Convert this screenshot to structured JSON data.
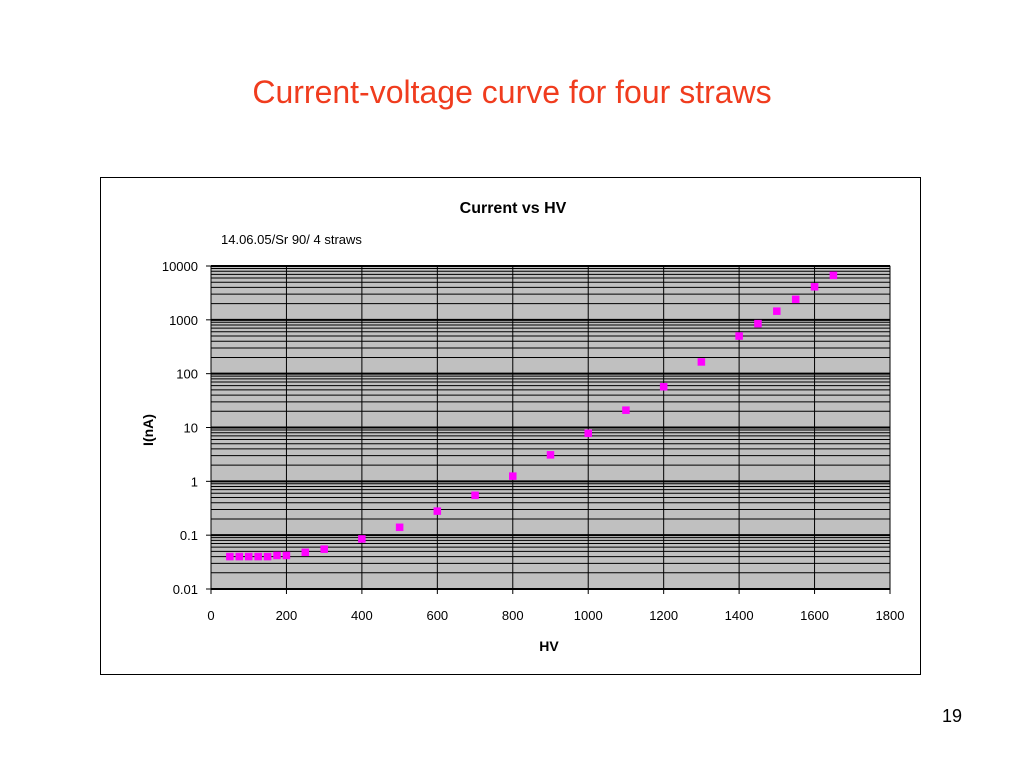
{
  "slide": {
    "title": "Current-voltage curve for four straws",
    "page_number": "19"
  },
  "colors": {
    "title": "#f03c1e",
    "plot_background": "#c0c0c0",
    "marker": "#ff00ff",
    "gridline": "#000000"
  },
  "chart_data": {
    "type": "scatter",
    "title": "Current vs HV",
    "subtitle": "14.06.05/Sr 90/ 4 straws",
    "xlabel": "HV",
    "ylabel": "I(nA)",
    "xlim": [
      0,
      1800
    ],
    "ylim": [
      0.01,
      10000
    ],
    "yscale": "log",
    "x_ticks": [
      0,
      200,
      400,
      600,
      800,
      1000,
      1200,
      1400,
      1600,
      1800
    ],
    "y_ticks": [
      0.01,
      0.1,
      1,
      10,
      100,
      1000,
      10000
    ],
    "y_tick_labels": [
      "0.01",
      "0.1",
      "1",
      "10",
      "100",
      "1000",
      "10000"
    ],
    "x_tick_labels": [
      "0",
      "200",
      "400",
      "600",
      "800",
      "1000",
      "1200",
      "1400",
      "1600",
      "1800"
    ],
    "grid": true,
    "legend": "none",
    "marker": "square",
    "series": [
      {
        "x": [
          50,
          75,
          100,
          125,
          150,
          175,
          200,
          250,
          300,
          400,
          500,
          600,
          700,
          800,
          900,
          1000,
          1100,
          1200,
          1300,
          1400,
          1450,
          1500,
          1550,
          1600,
          1650
        ],
        "y": [
          0.04,
          0.04,
          0.04,
          0.04,
          0.04,
          0.042,
          0.042,
          0.048,
          0.055,
          0.085,
          0.14,
          0.28,
          0.55,
          1.25,
          3.1,
          7.8,
          21,
          57,
          165,
          500,
          850,
          1450,
          2400,
          4100,
          6700
        ]
      }
    ]
  }
}
